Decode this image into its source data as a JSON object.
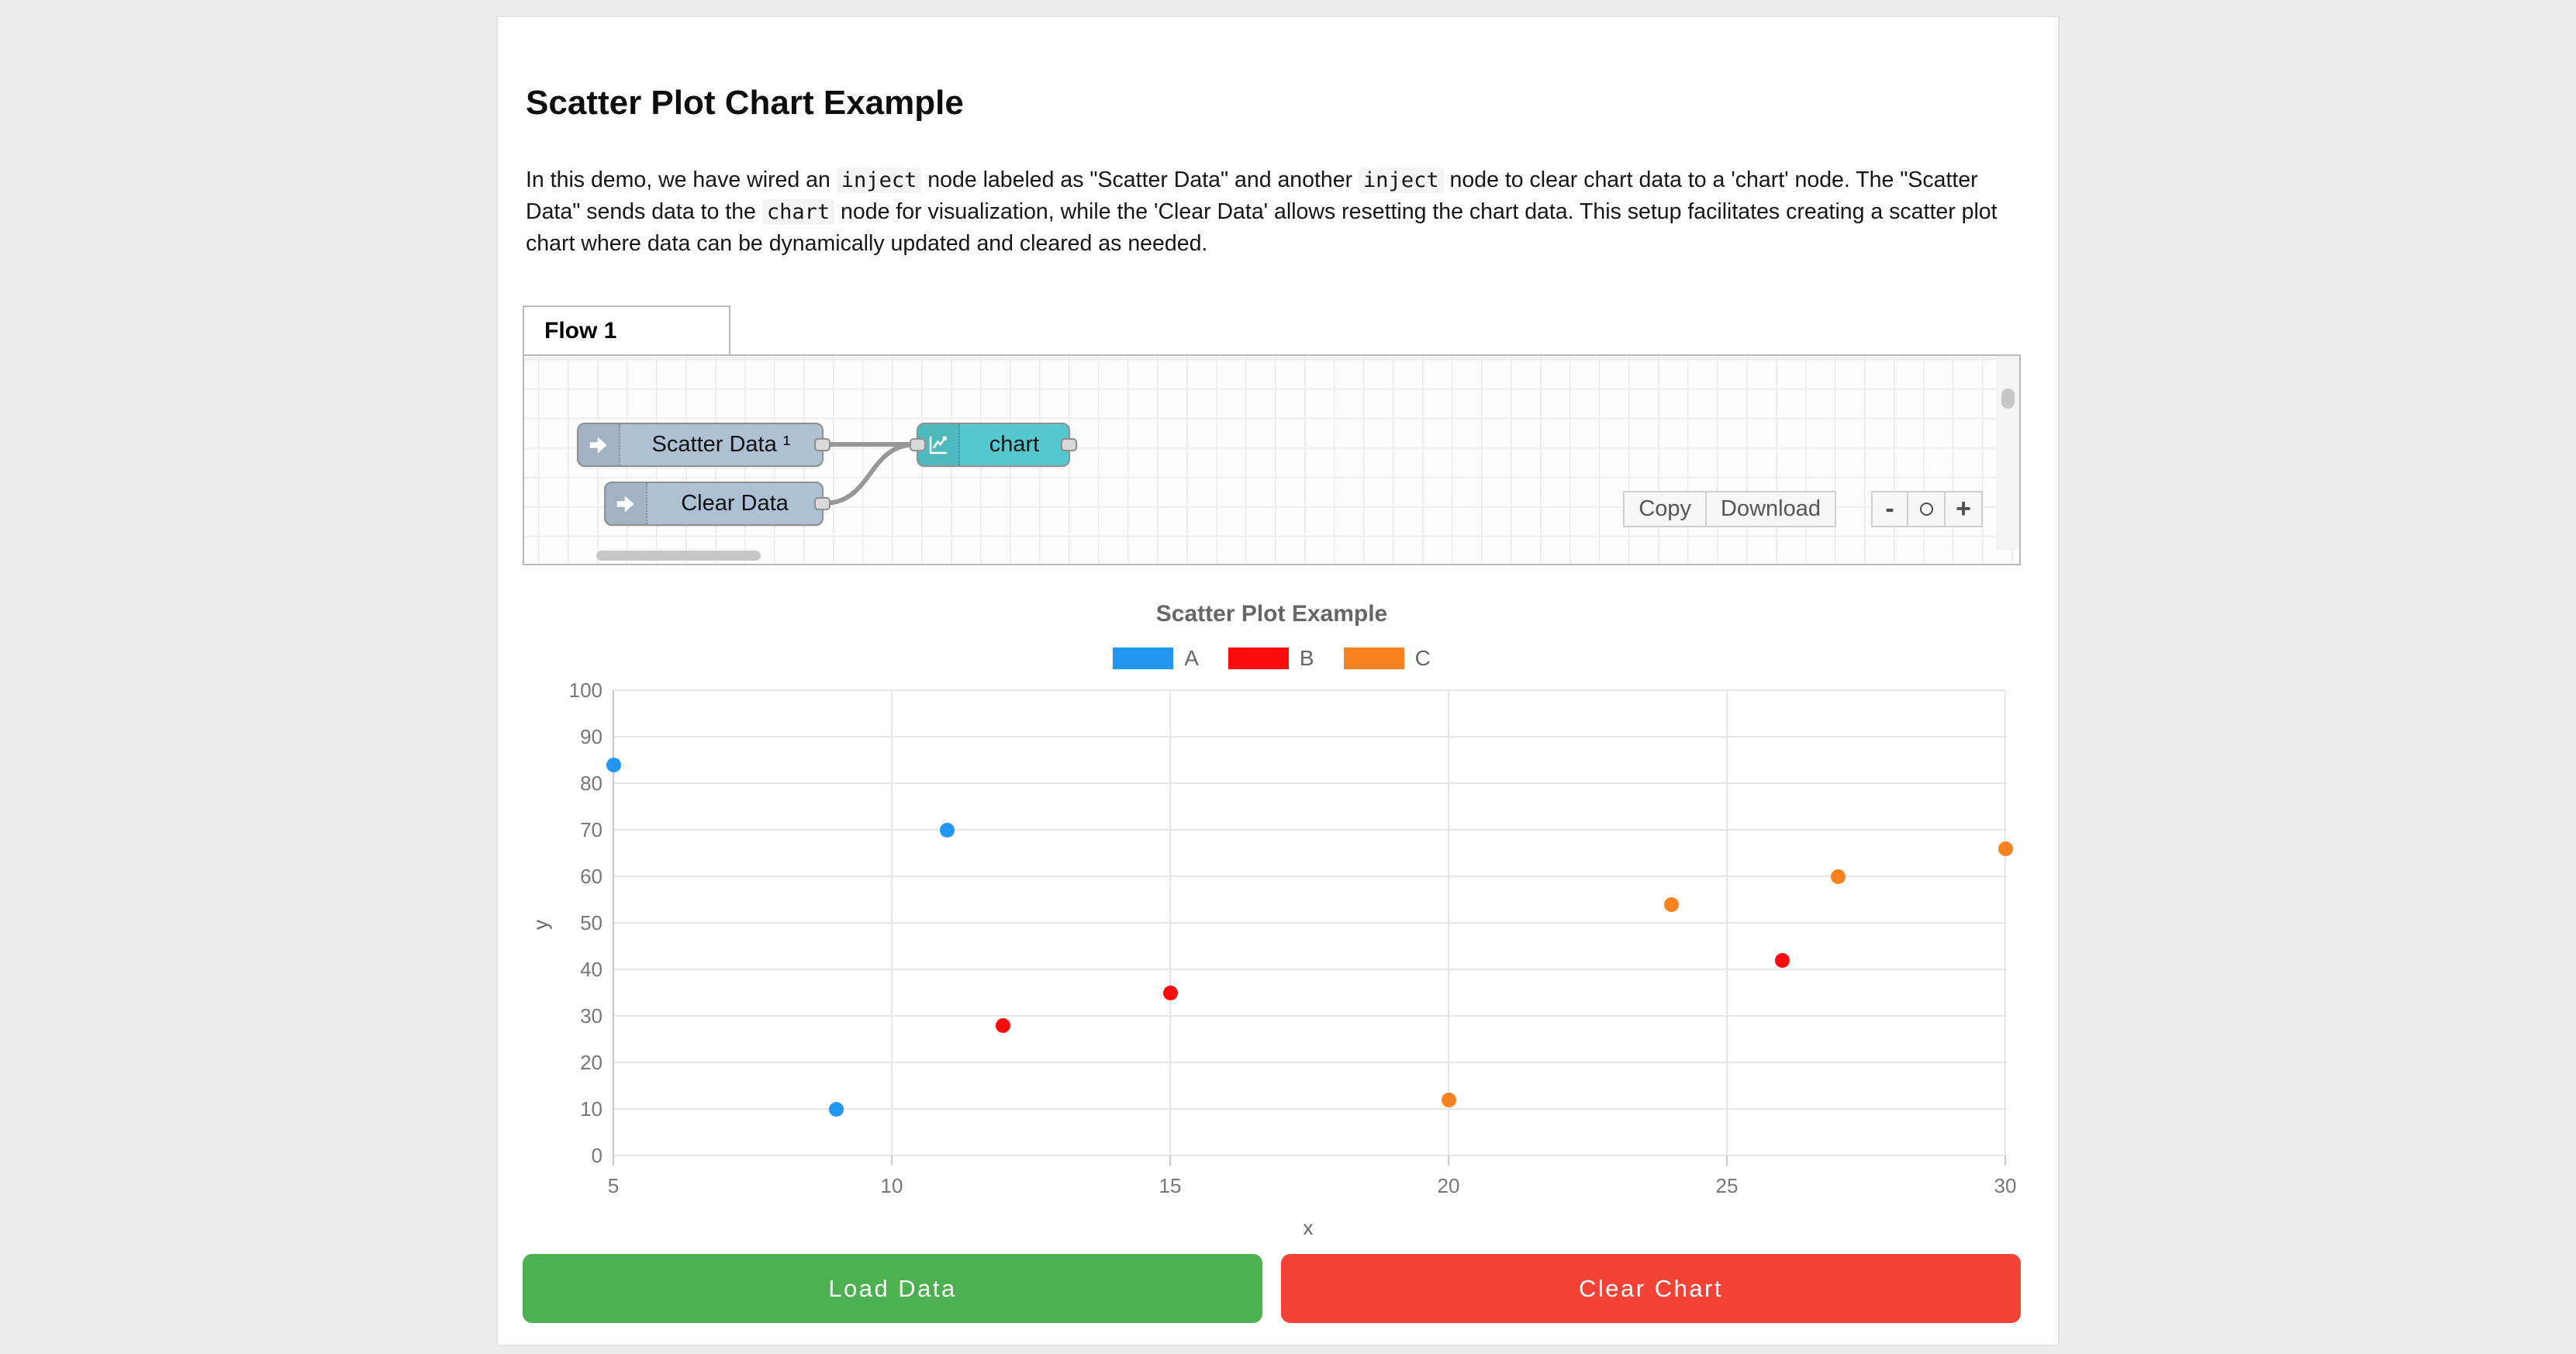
{
  "page": {
    "background": "#ebebeb",
    "card_background": "#ffffff"
  },
  "header": {
    "title": "Scatter Plot Chart Example"
  },
  "description": {
    "segments": [
      {
        "type": "text",
        "value": "In this demo, we have wired an "
      },
      {
        "type": "code",
        "value": "inject"
      },
      {
        "type": "text",
        "value": " node labeled as \"Scatter Data\" and another "
      },
      {
        "type": "code",
        "value": "inject"
      },
      {
        "type": "text",
        "value": " node to clear chart data to a 'chart' node. The \"Scatter Data\" sends data to the "
      },
      {
        "type": "code",
        "value": "chart"
      },
      {
        "type": "text",
        "value": " node for visualization, while the 'Clear Data' allows resetting the chart data. This setup facilitates creating a scatter plot chart where data can be dynamically updated and cleared as needed."
      }
    ]
  },
  "flow_editor": {
    "tab_label": "Flow 1",
    "nodes": [
      {
        "id": "scatter-data-inject",
        "label": "Scatter Data ¹",
        "type": "inject",
        "color": "#aec0d4"
      },
      {
        "id": "clear-data-inject",
        "label": "Clear Data",
        "type": "inject",
        "color": "#aec0d4"
      },
      {
        "id": "chart-node",
        "label": "chart",
        "type": "chart",
        "color": "#55c8cd"
      }
    ],
    "toolbar": {
      "copy_label": "Copy",
      "download_label": "Download"
    },
    "zoom_controls": {
      "zoom_out_label": "-",
      "zoom_reset_label": "",
      "zoom_in_label": "+"
    }
  },
  "chart_data": {
    "type": "scatter",
    "title": "Scatter Plot Example",
    "xlabel": "x",
    "ylabel": "y",
    "xlim": [
      5,
      30
    ],
    "ylim": [
      0,
      100
    ],
    "x_ticks": [
      5,
      10,
      15,
      20,
      25,
      30
    ],
    "y_ticks": [
      0,
      10,
      20,
      30,
      40,
      50,
      60,
      70,
      80,
      90,
      100
    ],
    "grid": true,
    "legend_position": "top",
    "series": [
      {
        "name": "A",
        "color": "#2196f3",
        "points": [
          [
            5,
            84
          ],
          [
            9,
            10
          ],
          [
            11,
            70
          ]
        ]
      },
      {
        "name": "B",
        "color": "#fb0b0b",
        "points": [
          [
            12,
            28
          ],
          [
            15,
            35
          ],
          [
            26,
            42
          ]
        ]
      },
      {
        "name": "C",
        "color": "#f8821f",
        "points": [
          [
            20,
            12
          ],
          [
            24,
            54
          ],
          [
            27,
            60
          ],
          [
            30,
            66
          ]
        ]
      }
    ]
  },
  "actions": {
    "load_label": "Load Data",
    "load_color": "#4caf50",
    "clear_label": "Clear Chart",
    "clear_color": "#f44336"
  }
}
